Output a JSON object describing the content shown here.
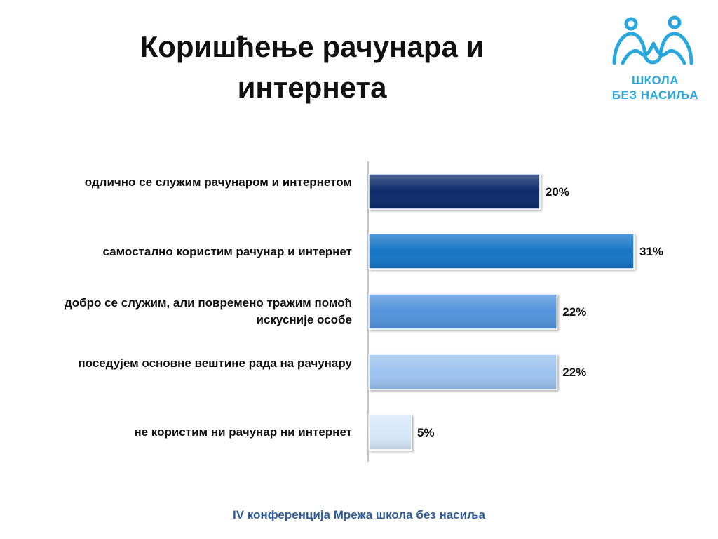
{
  "slide": {
    "title_line1": "Коришћење рачунара и",
    "title_line2": "интернета",
    "logo_line1": "ШКОЛА",
    "logo_line2": "БЕЗ НАСИЉА",
    "footer": "IV конференција Мрежа школа без насиља",
    "logo_color": "#29a8df"
  },
  "chart_data": {
    "type": "bar",
    "orientation": "horizontal",
    "categories": [
      "одлично се служим рачунаром и интернетом",
      "самостално користим рачунар и интернет",
      "добро се служим, али повремено тражим помоћ искусније особе",
      "поседујем основне вештине рада на рачунару",
      "не користим ни рачунар ни интернет"
    ],
    "values": [
      20,
      31,
      22,
      22,
      5
    ],
    "value_labels": [
      "20%",
      "31%",
      "22%",
      "22%",
      "5%"
    ],
    "bar_colors": [
      "#0f2a6b",
      "#1474c7",
      "#5393dc",
      "#9cc3f0",
      "#d6e8fc"
    ],
    "xlim": [
      0,
      31
    ],
    "grid": false
  }
}
